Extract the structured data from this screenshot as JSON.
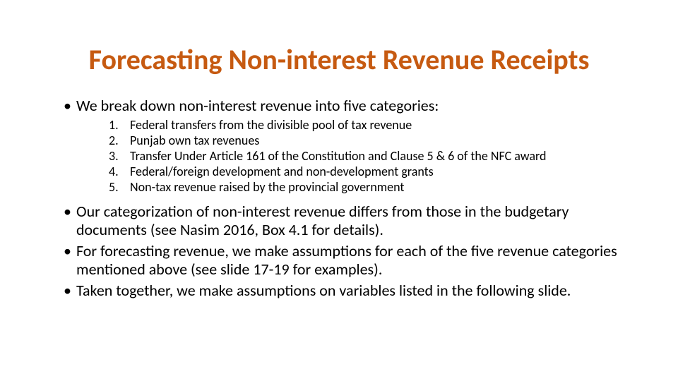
{
  "title": {
    "text": "Forecasting Non-interest Revenue Receipts",
    "color": "#C65A11",
    "fontsize_pt": 40,
    "weight": 700
  },
  "body": {
    "text_color": "#000000",
    "bullet_fontsize_pt": 22,
    "numlist_fontsize_pt": 18,
    "bullets_top": [
      "We break down non-interest revenue into five categories:"
    ],
    "numbered": [
      {
        "n": "1.",
        "text": "Federal transfers from the divisible pool of tax revenue"
      },
      {
        "n": "2.",
        "text": "Punjab own tax revenues"
      },
      {
        "n": "3.",
        "text": "Transfer Under Article 161 of the Constitution and Clause 5 & 6 of the NFC award"
      },
      {
        "n": "4.",
        "text": "Federal/foreign development and non-development grants"
      },
      {
        "n": "5.",
        "text": "Non-tax revenue raised by the provincial government"
      }
    ],
    "bullets_bottom": [
      "Our categorization of non-interest revenue differs from those in the budgetary documents (see Nasim 2016, Box 4.1 for details).",
      "For forecasting revenue, we make assumptions for each of the five revenue categories mentioned above (see slide 17-19 for examples).",
      "Taken together, we make assumptions on variables listed in the following slide."
    ],
    "bullet_glyph": "•"
  },
  "background_color": "#ffffff"
}
